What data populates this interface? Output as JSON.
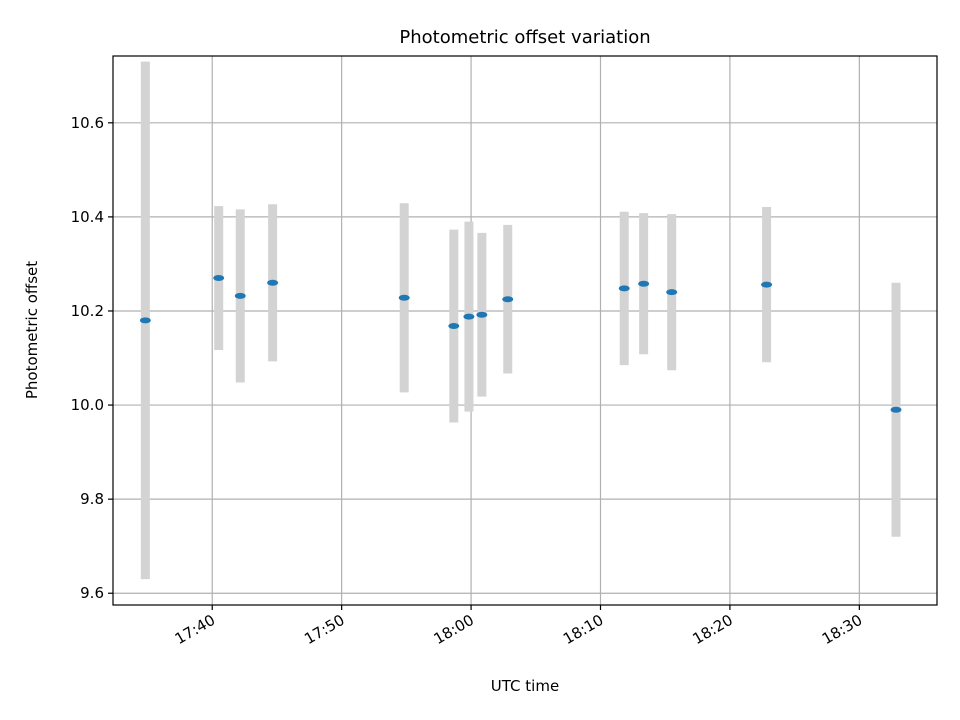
{
  "chart_data": {
    "type": "scatter",
    "title": "Photometric offset variation",
    "xlabel": "UTC time",
    "ylabel": "Photometric offset",
    "x_ticks": [
      "17:40",
      "17:50",
      "18:00",
      "18:10",
      "18:20",
      "18:30"
    ],
    "y_ticks": [
      "9.6",
      "9.8",
      "10.0",
      "10.2",
      "10.4",
      "10.6"
    ],
    "xlim": [
      "17:32:20",
      "18:36:00"
    ],
    "ylim": [
      9.575,
      10.742
    ],
    "grid": true,
    "marker_color": "#1f77b4",
    "errorbar_color": "#d3d3d3",
    "points": [
      {
        "x": "17:34:50",
        "y": 10.18,
        "err": 0.55
      },
      {
        "x": "17:40:30",
        "y": 10.27,
        "err": 0.153
      },
      {
        "x": "17:42:10",
        "y": 10.232,
        "err": 0.184
      },
      {
        "x": "17:44:40",
        "y": 10.26,
        "err": 0.167
      },
      {
        "x": "17:54:50",
        "y": 10.228,
        "err": 0.201
      },
      {
        "x": "17:58:40",
        "y": 10.168,
        "err": 0.205
      },
      {
        "x": "17:59:50",
        "y": 10.188,
        "err": 0.202
      },
      {
        "x": "18:00:50",
        "y": 10.192,
        "err": 0.174
      },
      {
        "x": "18:02:50",
        "y": 10.225,
        "err": 0.158
      },
      {
        "x": "18:11:50",
        "y": 10.248,
        "err": 0.163
      },
      {
        "x": "18:13:20",
        "y": 10.258,
        "err": 0.15
      },
      {
        "x": "18:15:30",
        "y": 10.24,
        "err": 0.166
      },
      {
        "x": "18:22:50",
        "y": 10.256,
        "err": 0.165
      },
      {
        "x": "18:32:50",
        "y": 9.99,
        "err": 0.27
      }
    ]
  }
}
